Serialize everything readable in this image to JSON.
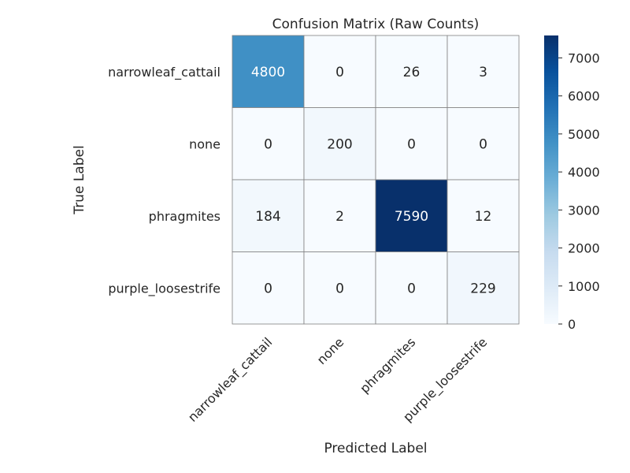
{
  "chart_data": {
    "type": "heatmap",
    "title": "Confusion Matrix (Raw Counts)",
    "xlabel": "Predicted Label",
    "ylabel": "True Label",
    "x_categories": [
      "narrowleaf_cattail",
      "none",
      "phragmites",
      "purple_loosestrife"
    ],
    "y_categories": [
      "narrowleaf_cattail",
      "none",
      "phragmites",
      "purple_loosestrife"
    ],
    "values": [
      [
        4800,
        0,
        26,
        3
      ],
      [
        0,
        200,
        0,
        0
      ],
      [
        184,
        2,
        7590,
        12
      ],
      [
        0,
        0,
        0,
        229
      ]
    ],
    "colormap": "Blues",
    "color_range": [
      0,
      7590
    ],
    "colorbar_ticks": [
      0,
      1000,
      2000,
      3000,
      4000,
      5000,
      6000,
      7000
    ],
    "grid": true
  }
}
